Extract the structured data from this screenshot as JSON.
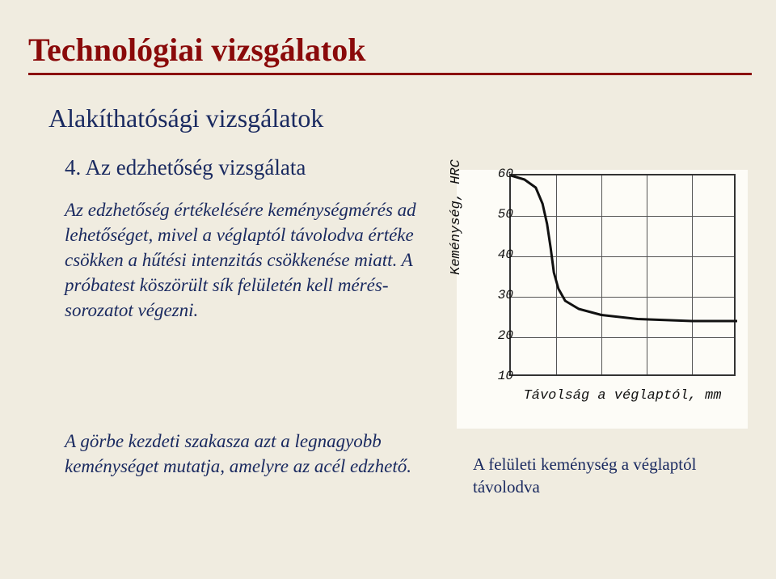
{
  "title": "Technológiai vizsgálatok",
  "subtitle": "Alakíthatósági vizsgálatok",
  "section_heading": "4. Az edzhetőség vizsgálata",
  "paragraph1": "Az edzhetőség értékelésére keménységmérés ad lehetőséget, mivel a véglaptól távolodva értéke csökken a hűtési intenzitás csökkenése miatt. A próbatest köszörült sík felületén kell mérés-sorozatot végezni.",
  "paragraph2": "A görbe kezdeti szakasza azt a legnagyobb keménységet mutatja, amelyre az acél edzhető.",
  "chart": {
    "type": "line",
    "ylabel": "Keménység, HRC",
    "xlabel": "Távolság a véglaptól, mm",
    "ylim": [
      10,
      60
    ],
    "xlim": [
      0,
      5
    ],
    "yticks": [
      10,
      20,
      30,
      40,
      50,
      60
    ],
    "vgrid_count": 5,
    "background_color": "#fdfcf7",
    "border_color": "#333333",
    "grid_color": "#555555",
    "line_color": "#111111",
    "line_width": 3,
    "tick_fontsize": 16,
    "label_fontsize": 17,
    "curve": [
      {
        "x": 0.0,
        "y": 60
      },
      {
        "x": 0.3,
        "y": 59
      },
      {
        "x": 0.55,
        "y": 57
      },
      {
        "x": 0.7,
        "y": 53
      },
      {
        "x": 0.8,
        "y": 48
      },
      {
        "x": 0.88,
        "y": 42
      },
      {
        "x": 0.95,
        "y": 36
      },
      {
        "x": 1.05,
        "y": 32
      },
      {
        "x": 1.2,
        "y": 29
      },
      {
        "x": 1.5,
        "y": 27
      },
      {
        "x": 2.0,
        "y": 25.5
      },
      {
        "x": 2.8,
        "y": 24.5
      },
      {
        "x": 4.0,
        "y": 24
      },
      {
        "x": 5.0,
        "y": 24
      }
    ]
  },
  "caption_below": "A felületi keménység a véglaptól távolodva",
  "colors": {
    "page_bg": "#f0ece0",
    "title_color": "#8a0a0a",
    "body_text": "#1a2a60"
  }
}
